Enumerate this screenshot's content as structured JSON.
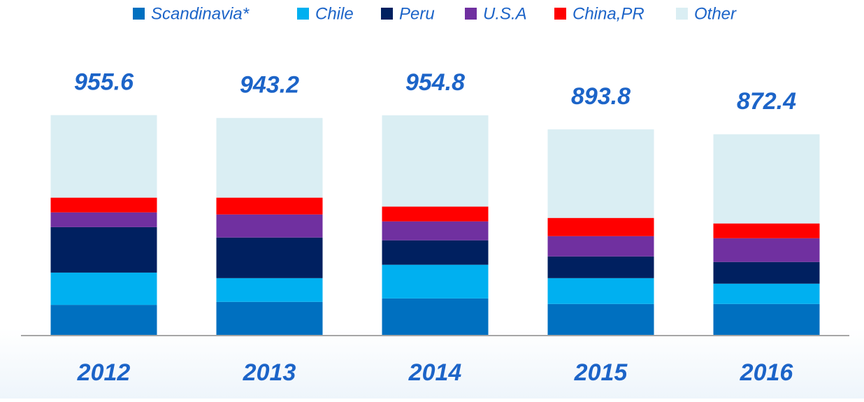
{
  "chart_data": {
    "type": "stacked_bar",
    "categories": [
      "2012",
      "2013",
      "2014",
      "2015",
      "2016"
    ],
    "series": [
      {
        "name": "Scandinavia*",
        "color": "#0070c0",
        "values": [
          133,
          146,
          161,
          137,
          137
        ]
      },
      {
        "name": "Chile",
        "color": "#00b0f0",
        "values": [
          140,
          103,
          146,
          112,
          88
        ]
      },
      {
        "name": "Peru",
        "color": "#002060",
        "values": [
          197,
          176,
          106,
          94,
          94
        ]
      },
      {
        "name": "U.S.A",
        "color": "#7030a0",
        "values": [
          64,
          100,
          82,
          88,
          103
        ]
      },
      {
        "name": "China,PR",
        "color": "#ff0000",
        "values": [
          64,
          73,
          64,
          79,
          64
        ]
      },
      {
        "name": "Other",
        "color": "#daeef3",
        "values": [
          357.6,
          345.2,
          395.8,
          383.8,
          386.4
        ]
      }
    ],
    "totals": [
      955.6,
      943.2,
      954.8,
      893.8,
      872.4
    ],
    "ylim": [
      0,
      1000
    ],
    "legend": "top"
  }
}
